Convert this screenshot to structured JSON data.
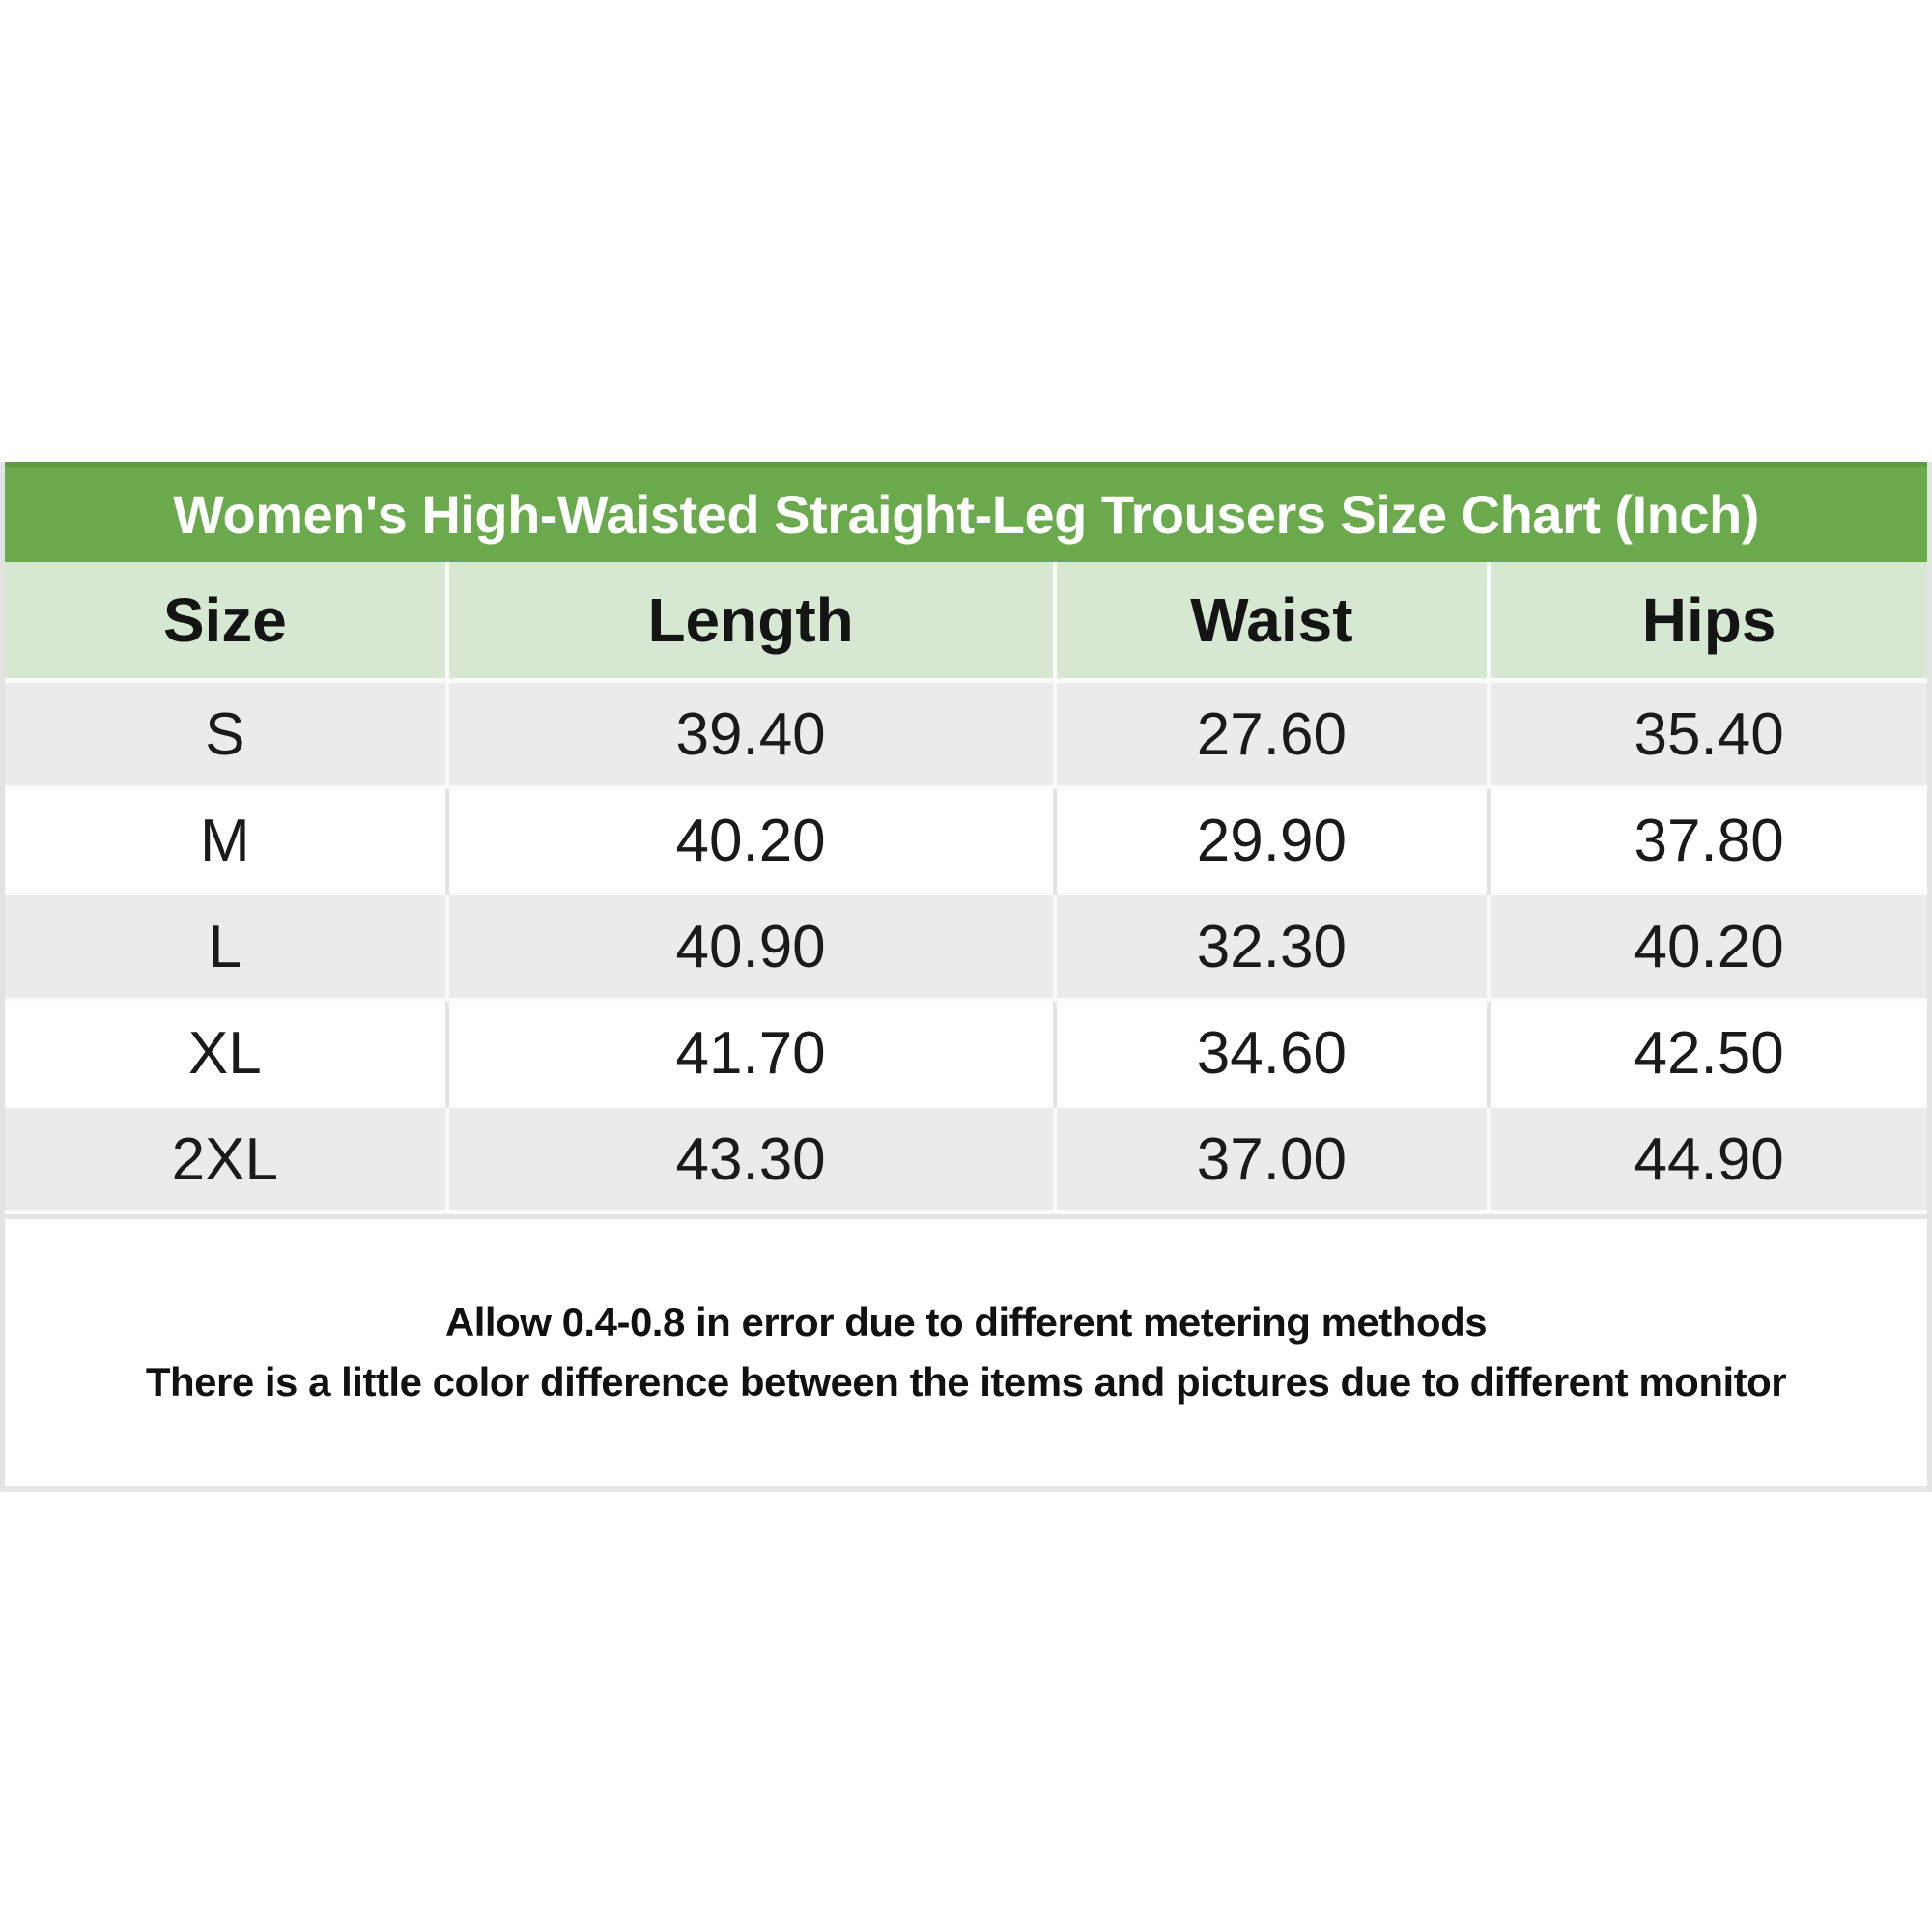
{
  "title": "Women's High-Waisted Straight-Leg Trousers Size Chart (Inch)",
  "table": {
    "headers": [
      "Size",
      "Length",
      "Waist",
      "Hips"
    ],
    "rows": [
      {
        "size": "S",
        "length": "39.40",
        "waist": "27.60",
        "hips": "35.40"
      },
      {
        "size": "M",
        "length": "40.20",
        "waist": "29.90",
        "hips": "37.80"
      },
      {
        "size": "L",
        "length": "40.90",
        "waist": "32.30",
        "hips": "40.20"
      },
      {
        "size": "XL",
        "length": "41.70",
        "waist": "34.60",
        "hips": "42.50"
      },
      {
        "size": "2XL",
        "length": "43.30",
        "waist": "37.00",
        "hips": "44.90"
      }
    ]
  },
  "notes": {
    "line1": "Allow 0.4-0.8 in error due to different metering methods",
    "line2": "There is a little color difference between the items and pictures due to different monitor"
  },
  "colors": {
    "title_bar_green": "#6aaa4d",
    "title_text": "#ffffff",
    "header_light_green": "#d6e8d1",
    "row_gray": "#ebebeb",
    "row_white": "#ffffff",
    "text": "#1a1a1a",
    "outer_border": "#e3e3e3"
  },
  "chart_data": {
    "type": "table",
    "title": "Women's High-Waisted Straight-Leg Trousers Size Chart (Inch)",
    "unit": "inch",
    "columns": [
      "Size",
      "Length",
      "Waist",
      "Hips"
    ],
    "rows": [
      [
        "S",
        39.4,
        27.6,
        35.4
      ],
      [
        "M",
        40.2,
        29.9,
        37.8
      ],
      [
        "L",
        40.9,
        32.3,
        40.2
      ],
      [
        "XL",
        41.7,
        34.6,
        42.5
      ],
      [
        "2XL",
        43.3,
        37.0,
        44.9
      ]
    ],
    "footnotes": [
      "Allow 0.4-0.8 in error due to different metering methods",
      "There is a little color difference between the items and pictures due to different monitor"
    ]
  }
}
